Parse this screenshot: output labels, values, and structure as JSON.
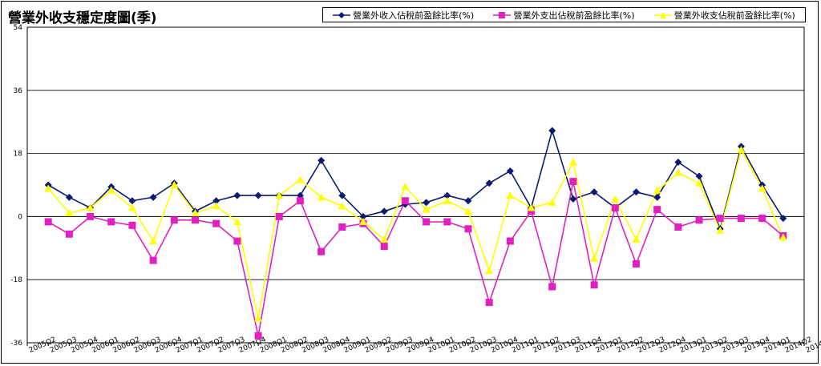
{
  "chart_data": {
    "type": "line",
    "title": "營業外收支穩定度圖(季)",
    "ylim": [
      -36,
      54
    ],
    "yticks": [
      54,
      36,
      18,
      0,
      -18,
      -36
    ],
    "grid": true,
    "legend_position": "top-right",
    "categories": [
      "2005Q2",
      "2005Q3",
      "2005Q4",
      "2006Q1",
      "2006Q2",
      "2006Q3",
      "2006Q4",
      "2007Q1",
      "2007Q2",
      "2007Q3",
      "2007Q4",
      "2008Q1",
      "2008Q2",
      "2008Q3",
      "2008Q4",
      "2009Q1",
      "2009Q2",
      "2009Q3",
      "2009Q4",
      "2010Q1",
      "2010Q2",
      "2010Q3",
      "2010Q4",
      "2011Q1",
      "2011Q2",
      "2011Q3",
      "2011Q4",
      "2012Q1",
      "2012Q2",
      "2012Q3",
      "2012Q4",
      "2013Q1",
      "2013Q2",
      "2013Q3",
      "2013Q4",
      "2014Q1",
      "2014Q2",
      "2014Q3"
    ],
    "series": [
      {
        "name": "營業外收入佔稅前盈餘比率(%)",
        "color": "#0a1a6e",
        "marker": "diamond",
        "values": [
          null,
          9,
          5.5,
          2.5,
          8.5,
          4.5,
          5.5,
          9.5,
          1.5,
          4.5,
          6,
          6,
          6,
          6,
          16,
          6,
          0,
          1.5,
          3.5,
          4,
          6,
          4.5,
          9.5,
          13,
          2.5,
          24.5,
          5,
          7,
          2.5,
          7,
          5.5,
          15.5,
          11.5,
          -3.5,
          20,
          9,
          -0.5,
          null
        ]
      },
      {
        "name": "營業外支出佔稅前盈餘比率(%)",
        "color": "#e020c0",
        "marker": "square",
        "values": [
          null,
          -1.5,
          -5,
          0,
          -1.5,
          -2.5,
          -12.5,
          -1,
          -1,
          -2,
          -7,
          -34,
          0,
          4.5,
          -10,
          -3,
          -2,
          -8.5,
          4.5,
          -1.5,
          -1.5,
          -3.5,
          -24.5,
          -7,
          1.5,
          -20,
          10,
          -19.5,
          2.5,
          -13.5,
          2,
          -3,
          -1,
          -0.5,
          -0.5,
          -0.5,
          -5.5,
          null
        ]
      },
      {
        "name": "營業外收支佔稅前盈餘比率(%)",
        "color": "#ffff00",
        "marker": "triangle",
        "values": [
          null,
          8,
          1,
          2.5,
          7.5,
          2.5,
          -7,
          9,
          1,
          3,
          -1.5,
          -29,
          6,
          10.5,
          5.5,
          3,
          -1.5,
          -6.5,
          8.5,
          2,
          4.5,
          1.5,
          -15.5,
          6,
          2.5,
          4,
          15.5,
          -12,
          5,
          -6.5,
          7.5,
          12.5,
          9.5,
          -4,
          19,
          8,
          -6,
          null
        ]
      }
    ]
  }
}
